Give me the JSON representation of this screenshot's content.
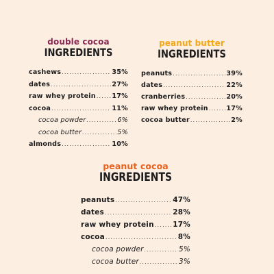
{
  "colors": {
    "background": "#fdeee2",
    "double_cocoa": "#8a2a52",
    "peanut_butter": "#f2a81b",
    "peanut_cocoa": "#e8601c",
    "text": "#1c1c1c"
  },
  "double_cocoa": {
    "flavor": "double cocoa",
    "heading": "INGREDIENTS",
    "items": [
      {
        "label": "cashews",
        "value": "35%"
      },
      {
        "label": "dates",
        "value": "27%"
      },
      {
        "label": "raw whey protein",
        "value": "17%"
      },
      {
        "label": "cocoa",
        "value": "11%"
      },
      {
        "label": "cocoa powder",
        "value": "6%"
      },
      {
        "label": "cocoa butter",
        "value": "5%"
      },
      {
        "label": "almonds",
        "value": "10%"
      }
    ]
  },
  "peanut_butter": {
    "flavor": "peanut butter",
    "heading": "INGREDIENTS",
    "items": [
      {
        "label": "peanuts",
        "value": "39%"
      },
      {
        "label": "dates",
        "value": "22%"
      },
      {
        "label": "cranberries",
        "value": "20%"
      },
      {
        "label": "raw whey protein",
        "value": "17%"
      },
      {
        "label": "cocoa butter",
        "value": "2%"
      }
    ]
  },
  "peanut_cocoa": {
    "flavor": "peanut cocoa",
    "heading": "INGREDIENTS",
    "items": [
      {
        "label": "peanuts",
        "value": "47%"
      },
      {
        "label": "dates",
        "value": "28%"
      },
      {
        "label": "raw whey protein",
        "value": "17%"
      },
      {
        "label": "cocoa",
        "value": "8%"
      },
      {
        "label": "cocoa powder",
        "value": "5%"
      },
      {
        "label": "cocoa butter",
        "value": "3%"
      }
    ]
  }
}
